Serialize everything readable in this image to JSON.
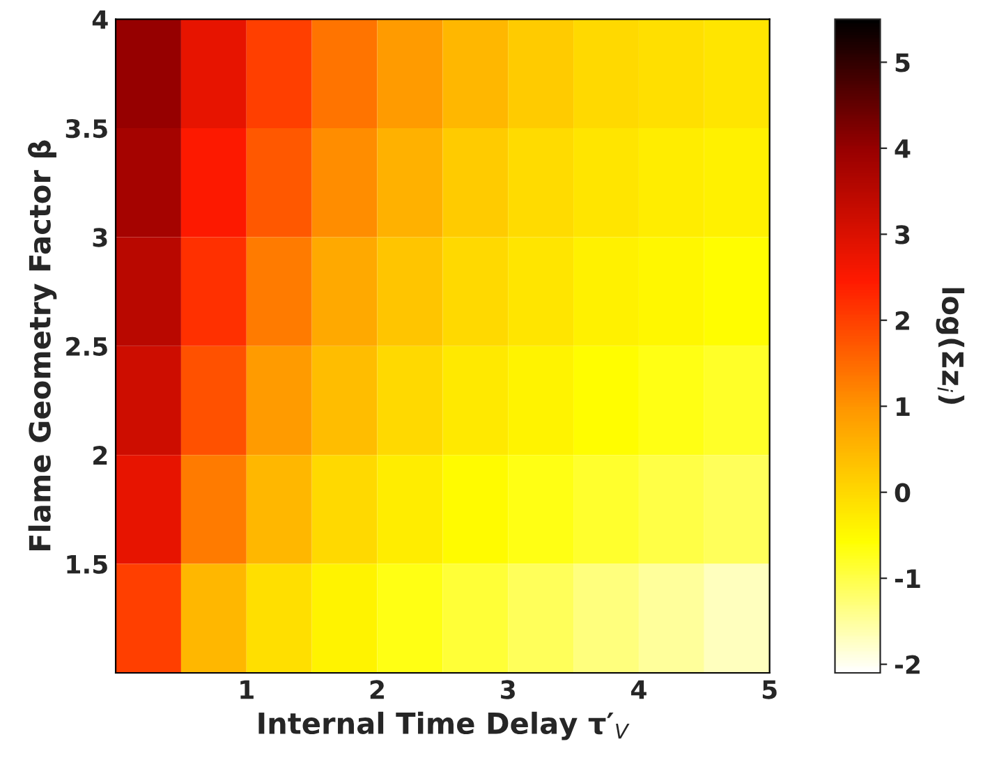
{
  "chart_data": {
    "type": "heatmap",
    "xlabel": "Internal Time Delay τ′$_{V}$",
    "ylabel": "Flame Geometry Factor β",
    "clabel": "log(Σz$_{i}$)",
    "x": [
      0.25,
      0.75,
      1.25,
      1.75,
      2.25,
      2.75,
      3.25,
      3.75,
      4.25,
      4.75
    ],
    "y": [
      3.75,
      3.25,
      2.75,
      2.25,
      1.75,
      1.25
    ],
    "cells": [
      [
        4.0,
        2.8,
        2.0,
        1.4,
        0.9,
        0.5,
        0.2,
        0.0,
        -0.1,
        -0.2
      ],
      [
        3.8,
        2.5,
        1.7,
        1.1,
        0.6,
        0.2,
        -0.05,
        -0.2,
        -0.3,
        -0.35
      ],
      [
        3.5,
        2.2,
        1.3,
        0.7,
        0.3,
        0.0,
        -0.2,
        -0.35,
        -0.45,
        -0.55
      ],
      [
        3.2,
        1.8,
        0.9,
        0.4,
        0.0,
        -0.25,
        -0.4,
        -0.55,
        -0.7,
        -0.8
      ],
      [
        2.8,
        1.3,
        0.5,
        0.0,
        -0.3,
        -0.5,
        -0.7,
        -0.85,
        -1.0,
        -1.1
      ],
      [
        2.0,
        0.5,
        -0.1,
        -0.4,
        -0.7,
        -0.9,
        -1.1,
        -1.3,
        -1.5,
        -1.7
      ]
    ],
    "xlim": [
      0,
      5
    ],
    "ylim": [
      1,
      4
    ],
    "xticks": [
      1,
      2,
      3,
      4,
      5
    ],
    "yticks": [
      1.5,
      2,
      2.5,
      3,
      3.5,
      4
    ],
    "clim": [
      -2.1,
      5.5
    ],
    "cticks": [
      -2,
      -1,
      0,
      1,
      2,
      3,
      4,
      5
    ]
  }
}
